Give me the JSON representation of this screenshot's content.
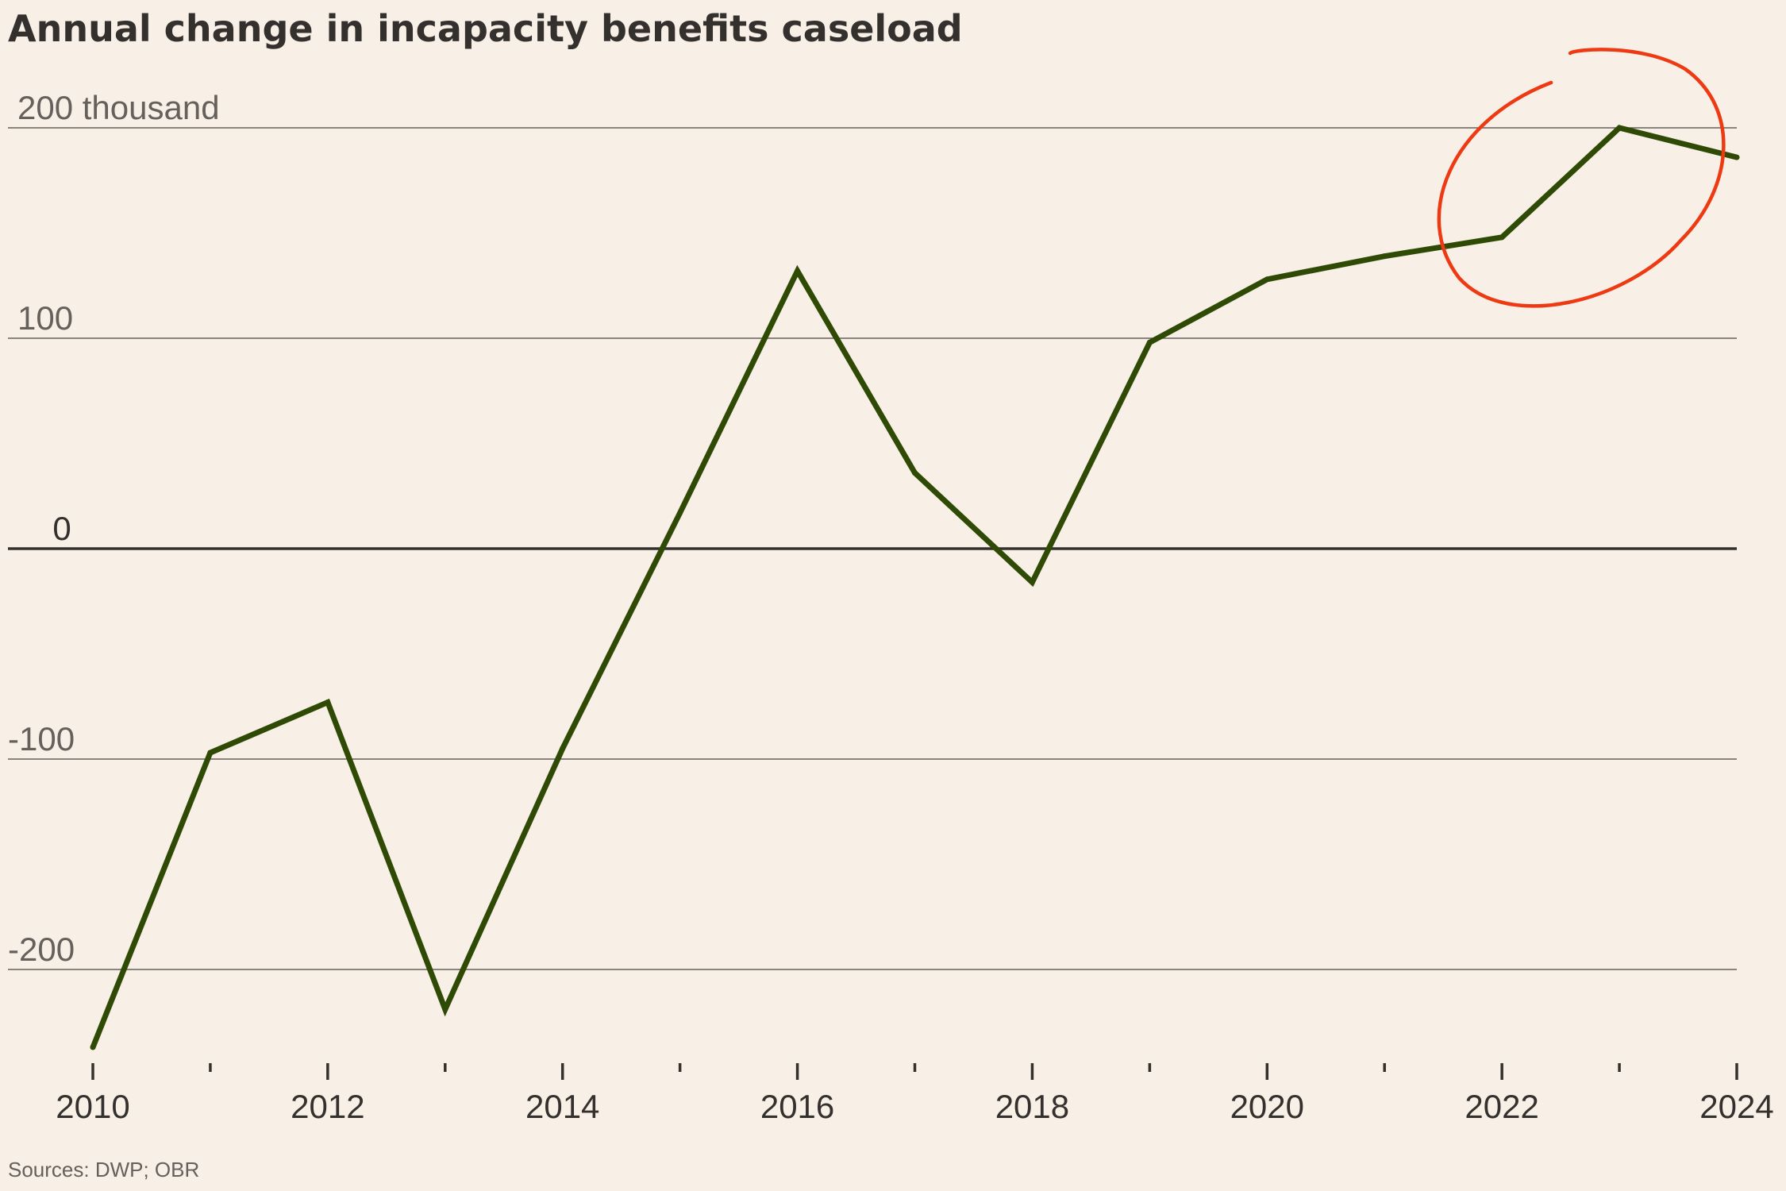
{
  "chart_data": {
    "type": "line",
    "title": "Annual change in incapacity benefits caseload",
    "unit_label": "200 thousand",
    "xlabel": "",
    "ylabel": "",
    "x": [
      2010,
      2011,
      2012,
      2013,
      2014,
      2015,
      2016,
      2017,
      2018,
      2019,
      2020,
      2021,
      2022,
      2023,
      2024
    ],
    "x_tick_labels": [
      "2010",
      "2012",
      "2014",
      "2016",
      "2018",
      "2020",
      "2022",
      "2024"
    ],
    "y_ticks": [
      200,
      100,
      0,
      -100,
      -200
    ],
    "y_tick_labels": [
      "200 thousand",
      "100",
      "0",
      "-100",
      "-200"
    ],
    "ylim": [
      -240,
      200
    ],
    "xlim": [
      2010,
      2024
    ],
    "series": [
      {
        "name": "Annual change in incapacity benefits caseload",
        "color": "#2f4a05",
        "values": [
          -237,
          -97,
          -73,
          -219,
          -95,
          17,
          132,
          36,
          -16,
          98,
          128,
          139,
          148,
          200,
          186
        ]
      }
    ],
    "annotation": {
      "type": "hand-drawn circle",
      "color": "#ee3a12",
      "years": [
        2022,
        2023
      ],
      "note": "highlighting the jump in 2022–2023"
    },
    "source": "Sources: DWP; OBR"
  }
}
